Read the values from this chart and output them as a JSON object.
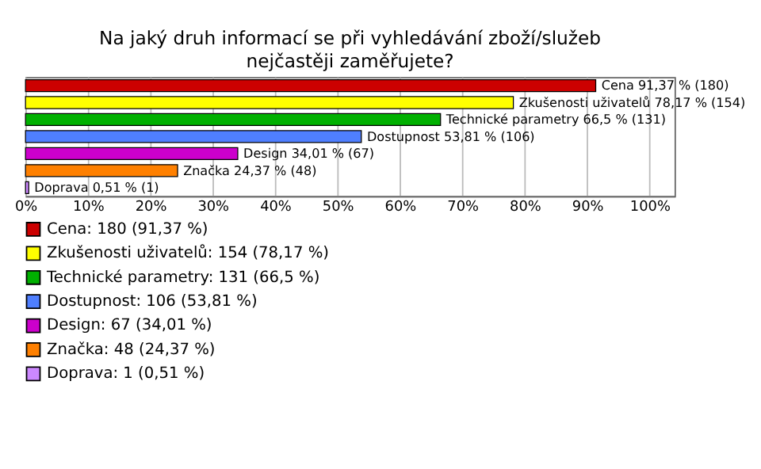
{
  "chart_data": {
    "type": "bar",
    "orientation": "horizontal",
    "title": "Na jaký druh informací se při vyhledávání zboží/služeb nejčastěji zaměřujete?",
    "categories": [
      null,
      null,
      null,
      null,
      null,
      null,
      null
    ],
    "series": [
      {
        "name": "Cena: 180 (91,37 %)",
        "color": "#cc0000",
        "values": [
          91.37,
          null,
          null,
          null,
          null,
          null,
          null
        ],
        "value_labels": [
          "Cena 91,37 % (180)",
          null,
          null,
          null,
          null,
          null,
          null
        ]
      },
      {
        "name": "Zkušenosti uživatelů: 154 (78,17 %)",
        "color": "#ffff00",
        "values": [
          null,
          78.17,
          null,
          null,
          null,
          null,
          null
        ],
        "value_labels": [
          null,
          "Zkušenosti uživatelů 78,17 % (154)",
          null,
          null,
          null,
          null,
          null
        ]
      },
      {
        "name": "Technické parametry: 131 (66,5 %)",
        "color": "#00b000",
        "values": [
          null,
          null,
          66.5,
          null,
          null,
          null,
          null
        ],
        "value_labels": [
          null,
          null,
          "Technické parametry 66,5 % (131)",
          null,
          null,
          null,
          null
        ]
      },
      {
        "name": "Dostupnost: 106 (53,81 %)",
        "color": "#4f7fff",
        "values": [
          null,
          null,
          null,
          53.81,
          null,
          null,
          null
        ],
        "value_labels": [
          null,
          null,
          null,
          "Dostupnost 53,81 % (106)",
          null,
          null,
          null
        ]
      },
      {
        "name": "Design: 67 (34,01 %)",
        "color": "#cc00cc",
        "values": [
          null,
          null,
          null,
          null,
          34.01,
          null,
          null
        ],
        "value_labels": [
          null,
          null,
          null,
          null,
          "Design 34,01 % (67)",
          null,
          null
        ]
      },
      {
        "name": "Značka: 48 (24,37 %)",
        "color": "#ff8000",
        "values": [
          null,
          null,
          null,
          null,
          null,
          24.37,
          null
        ],
        "value_labels": [
          null,
          null,
          null,
          null,
          null,
          "Značka 24,37 % (48)",
          null
        ]
      },
      {
        "name": "Doprava: 1 (0,51 %)",
        "color": "#cc88ff",
        "values": [
          null,
          null,
          null,
          null,
          null,
          null,
          0.51
        ],
        "value_labels": [
          null,
          null,
          null,
          null,
          null,
          null,
          "Doprava 0,51 % (1)"
        ]
      }
    ],
    "xlim": [
      0,
      104
    ],
    "xticks": [
      {
        "value": 0,
        "label": "0%"
      },
      {
        "value": 10,
        "label": "10%"
      },
      {
        "value": 20,
        "label": "20%"
      },
      {
        "value": 30,
        "label": "30%"
      },
      {
        "value": 40,
        "label": "40%"
      },
      {
        "value": 50,
        "label": "50%"
      },
      {
        "value": 60,
        "label": "60%"
      },
      {
        "value": 70,
        "label": "70%"
      },
      {
        "value": 80,
        "label": "80%"
      },
      {
        "value": 90,
        "label": "90%"
      },
      {
        "value": 100,
        "label": "100%"
      }
    ],
    "grid": "x",
    "legend": "bottom",
    "tick_labels": "x"
  }
}
